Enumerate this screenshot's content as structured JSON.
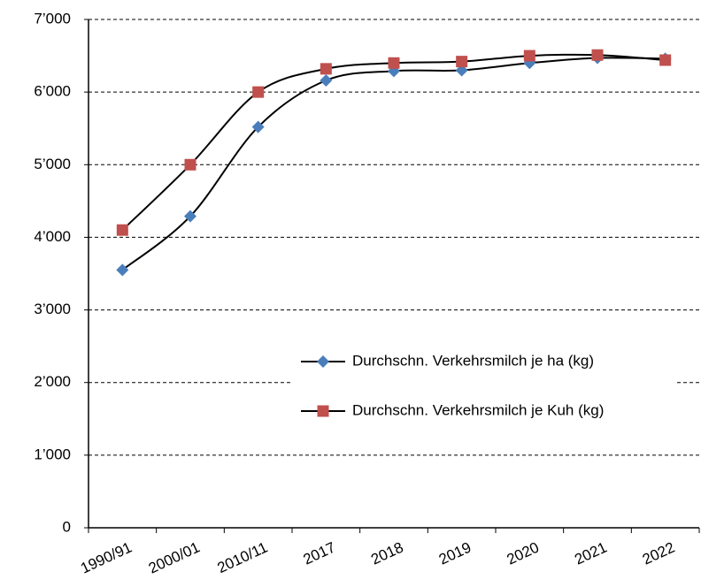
{
  "chart_data": {
    "type": "line",
    "categories": [
      "1990/91",
      "2000/01",
      "2010/11",
      "2017",
      "2018",
      "2019",
      "2020",
      "2021",
      "2022"
    ],
    "series": [
      {
        "name": "Durchschn. Verkehrsmilch je ha (kg)",
        "color": "#4a7ebb",
        "marker": "diamond",
        "values": [
          3550,
          4290,
          5520,
          6160,
          6290,
          6300,
          6400,
          6470,
          6460
        ]
      },
      {
        "name": "Durchschn. Verkehrsmilch je Kuh (kg)",
        "color": "#c0504d",
        "marker": "square",
        "values": [
          4100,
          5000,
          6000,
          6320,
          6400,
          6420,
          6500,
          6510,
          6440
        ]
      }
    ],
    "line_color": "#000000",
    "ylim": [
      0,
      7000
    ],
    "yticks": [
      0,
      {
        "value": 1000,
        "label": "1’000"
      },
      {
        "value": 2000,
        "label": "2’000"
      },
      {
        "value": 3000,
        "label": "3’000"
      },
      {
        "value": 4000,
        "label": "4’000"
      },
      {
        "value": 5000,
        "label": "5’000"
      },
      {
        "value": 6000,
        "label": "6’000"
      },
      {
        "value": 7000,
        "label": "7’000"
      }
    ],
    "grid": true,
    "smooth": true
  }
}
